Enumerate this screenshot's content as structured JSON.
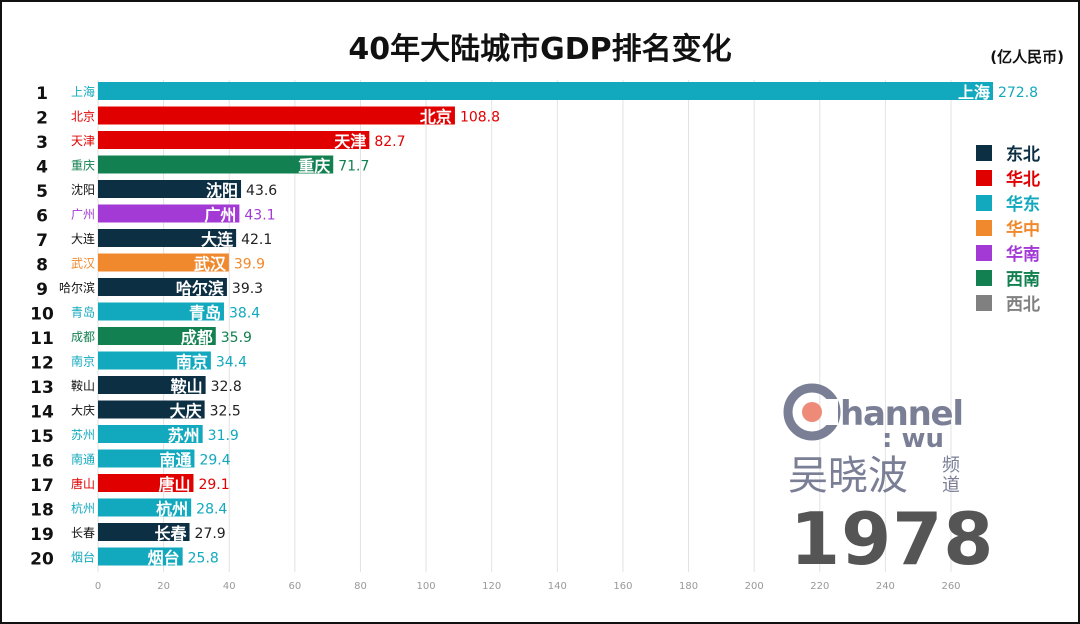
{
  "chart_data": {
    "type": "bar",
    "title": "40年大陆城市GDP排名变化",
    "unit": "(亿人民币)",
    "year": "1978",
    "xlim": [
      0,
      260
    ],
    "xticks": [
      0,
      20,
      40,
      60,
      80,
      100,
      120,
      140,
      160,
      180,
      200,
      220,
      240,
      260
    ],
    "grid": true,
    "legend_position": "right",
    "regions": [
      {
        "name": "东北",
        "color": "#0d2f44"
      },
      {
        "name": "华北",
        "color": "#e00000"
      },
      {
        "name": "华东",
        "color": "#12a9be"
      },
      {
        "name": "华中",
        "color": "#f0892e"
      },
      {
        "name": "华南",
        "color": "#a43ad6"
      },
      {
        "name": "西南",
        "color": "#128050"
      },
      {
        "name": "西北",
        "color": "#808080"
      }
    ],
    "bars": [
      {
        "rank": 1,
        "city": "上海",
        "region": "华东",
        "value": 272.8
      },
      {
        "rank": 2,
        "city": "北京",
        "region": "华北",
        "value": 108.8
      },
      {
        "rank": 3,
        "city": "天津",
        "region": "华北",
        "value": 82.7
      },
      {
        "rank": 4,
        "city": "重庆",
        "region": "西南",
        "value": 71.7
      },
      {
        "rank": 5,
        "city": "沈阳",
        "region": "东北",
        "value": 43.6
      },
      {
        "rank": 6,
        "city": "广州",
        "region": "华南",
        "value": 43.1
      },
      {
        "rank": 7,
        "city": "大连",
        "region": "东北",
        "value": 42.1
      },
      {
        "rank": 8,
        "city": "武汉",
        "region": "华中",
        "value": 39.9
      },
      {
        "rank": 9,
        "city": "哈尔滨",
        "region": "东北",
        "value": 39.3
      },
      {
        "rank": 10,
        "city": "青岛",
        "region": "华东",
        "value": 38.4
      },
      {
        "rank": 11,
        "city": "成都",
        "region": "西南",
        "value": 35.9
      },
      {
        "rank": 12,
        "city": "南京",
        "region": "华东",
        "value": 34.4
      },
      {
        "rank": 13,
        "city": "鞍山",
        "region": "东北",
        "value": 32.8
      },
      {
        "rank": 14,
        "city": "大庆",
        "region": "东北",
        "value": 32.5
      },
      {
        "rank": 15,
        "city": "苏州",
        "region": "华东",
        "value": 31.9
      },
      {
        "rank": 16,
        "city": "南通",
        "region": "华东",
        "value": 29.4
      },
      {
        "rank": 17,
        "city": "唐山",
        "region": "华北",
        "value": 29.1
      },
      {
        "rank": 18,
        "city": "杭州",
        "region": "华东",
        "value": 28.4
      },
      {
        "rank": 19,
        "city": "长春",
        "region": "东北",
        "value": 27.9
      },
      {
        "rank": 20,
        "city": "烟台",
        "region": "华东",
        "value": 25.8
      }
    ]
  },
  "logo": {
    "text": "Channel : WU",
    "name": "吴晓波",
    "suffix": "频道"
  }
}
